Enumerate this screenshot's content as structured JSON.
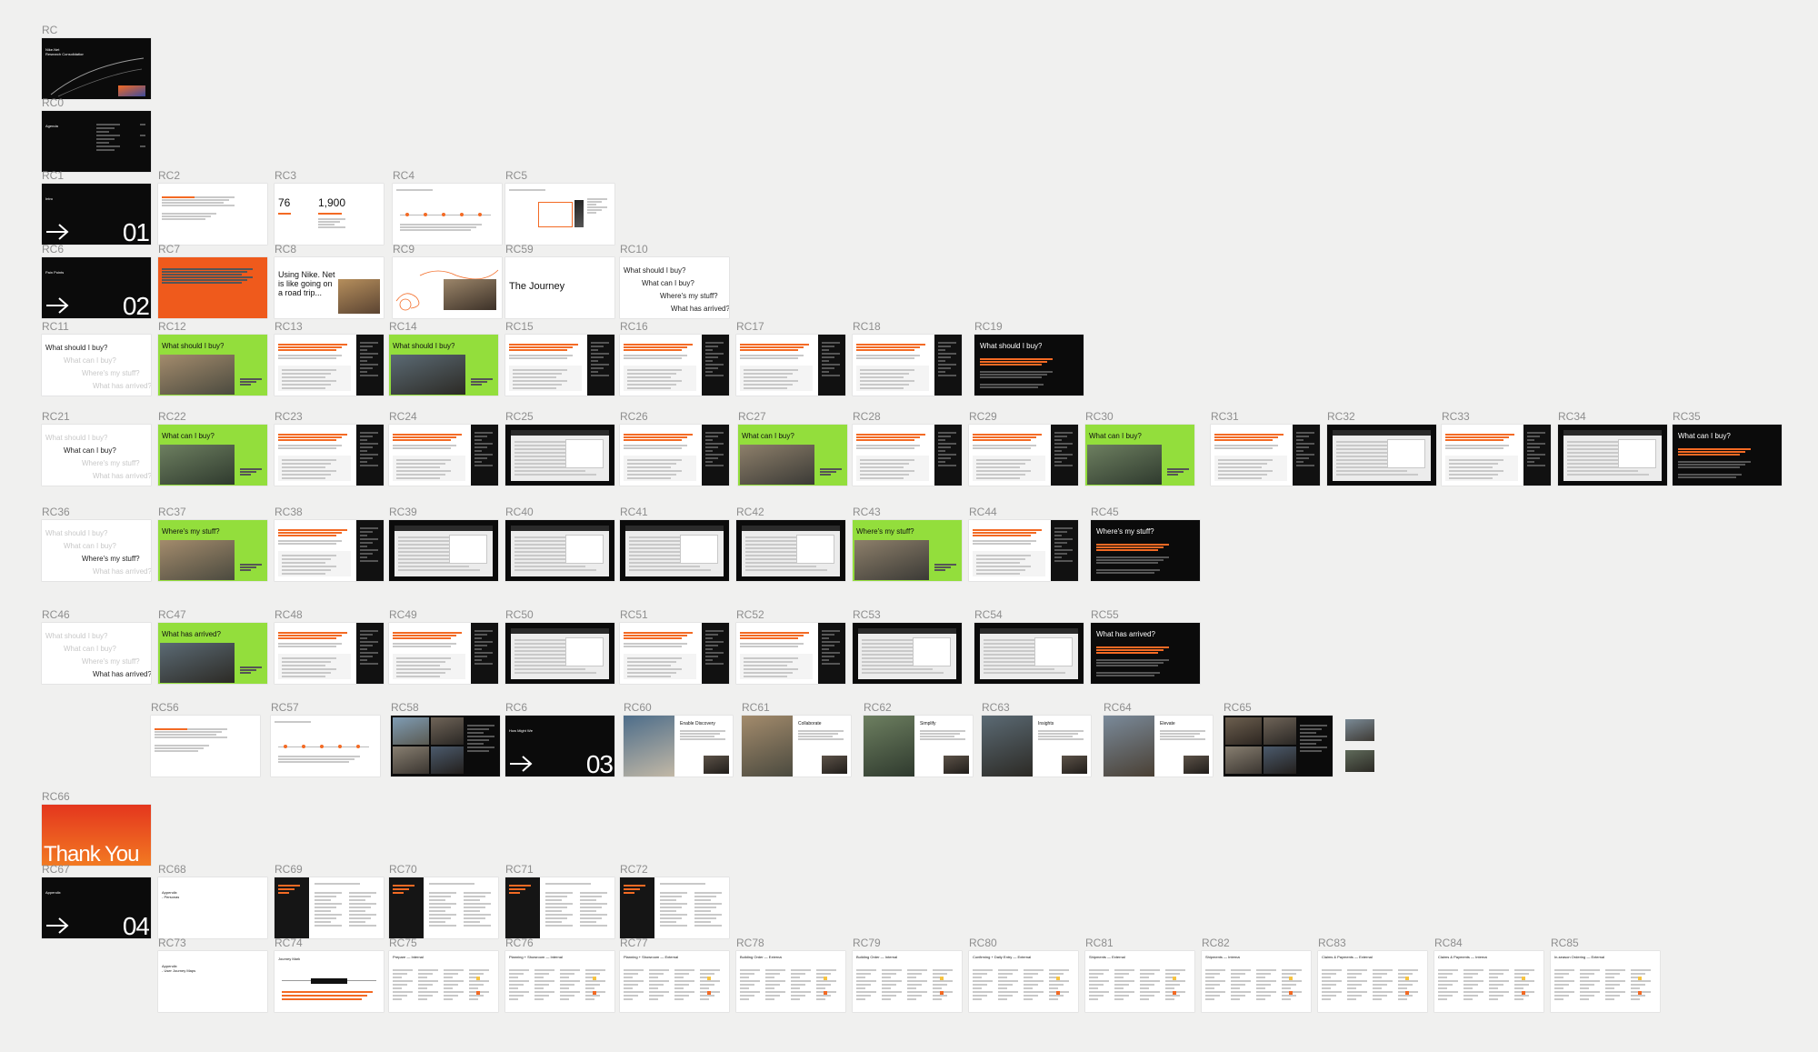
{
  "canvas": {
    "background": "#f0f0ef"
  },
  "colors": {
    "accent_orange": "#ef5a1c",
    "accent_lime": "#93de3c",
    "dark": "#0b0b0b",
    "label": "#8e8e8e"
  },
  "frames": [
    {
      "id": "RC",
      "label": "RC",
      "theme": "black",
      "kind": "cover",
      "title": "Nike.Net\nResearch Consolidation"
    },
    {
      "id": "RC0",
      "label": "RC0",
      "theme": "black",
      "kind": "agenda",
      "title": "Agenda"
    },
    {
      "id": "RC1",
      "label": "RC1",
      "theme": "black",
      "kind": "section",
      "title": "Intro",
      "number": "01"
    },
    {
      "id": "RC2",
      "label": "RC2",
      "theme": "white",
      "kind": "text"
    },
    {
      "id": "RC3",
      "label": "RC3",
      "theme": "white",
      "kind": "stats",
      "big1": "76",
      "big2": "1,900"
    },
    {
      "id": "RC4",
      "label": "RC4",
      "theme": "white",
      "kind": "diagram"
    },
    {
      "id": "RC5",
      "label": "RC5",
      "theme": "white",
      "kind": "diagram2"
    },
    {
      "id": "RC6a",
      "label": "RC6",
      "theme": "black",
      "kind": "section",
      "title": "Pain Points",
      "number": "02"
    },
    {
      "id": "RC7",
      "label": "RC7",
      "theme": "orange",
      "kind": "text-orange"
    },
    {
      "id": "RC8",
      "label": "RC8",
      "theme": "white",
      "kind": "roadtrip",
      "title": "Using Nike. Net\nis like going on\na road trip..."
    },
    {
      "id": "RC9",
      "label": "RC9",
      "theme": "white",
      "kind": "photo-sketch"
    },
    {
      "id": "RC59",
      "label": "RC59",
      "theme": "white",
      "kind": "title",
      "title": "The Journey"
    },
    {
      "id": "RC10",
      "label": "RC10",
      "theme": "white",
      "kind": "questions",
      "q": [
        "What should I buy?",
        "What can I buy?",
        "Where's my stuff?",
        "What has arrived?"
      ]
    },
    {
      "id": "RC11",
      "label": "RC11",
      "theme": "white",
      "kind": "questions",
      "q": [
        "What should I buy?",
        "What can I buy?",
        "Where's my stuff?",
        "What has arrived?"
      ]
    },
    {
      "id": "RC12",
      "label": "RC12",
      "theme": "lime",
      "kind": "lime-photo",
      "title": "What should I buy?"
    },
    {
      "id": "RC13",
      "label": "RC13",
      "theme": "white",
      "kind": "text-side"
    },
    {
      "id": "RC14",
      "label": "RC14",
      "theme": "lime",
      "kind": "lime-photo",
      "title": "What should I buy?"
    },
    {
      "id": "RC15",
      "label": "RC15",
      "theme": "white",
      "kind": "text-side"
    },
    {
      "id": "RC16",
      "label": "RC16",
      "theme": "white",
      "kind": "text-side"
    },
    {
      "id": "RC17",
      "label": "RC17",
      "theme": "white",
      "kind": "text-side"
    },
    {
      "id": "RC18",
      "label": "RC18",
      "theme": "white",
      "kind": "text-side"
    },
    {
      "id": "RC19",
      "label": "RC19",
      "theme": "black",
      "kind": "dark-text",
      "title": "What should I buy?"
    },
    {
      "id": "RC21",
      "label": "RC21",
      "theme": "white",
      "kind": "questions",
      "q": [
        "What should I buy?",
        "What can I buy?",
        "Where's my stuff?",
        "What has arrived?"
      ]
    },
    {
      "id": "RC22",
      "label": "RC22",
      "theme": "lime",
      "kind": "lime-photo",
      "title": "What can I buy?"
    },
    {
      "id": "RC23",
      "label": "RC23",
      "theme": "white",
      "kind": "text-side"
    },
    {
      "id": "RC24",
      "label": "RC24",
      "theme": "white",
      "kind": "text-side"
    },
    {
      "id": "RC25",
      "label": "RC25",
      "theme": "black",
      "kind": "screenshot"
    },
    {
      "id": "RC26",
      "label": "RC26",
      "theme": "white",
      "kind": "text-side"
    },
    {
      "id": "RC27",
      "label": "RC27",
      "theme": "lime",
      "kind": "lime-photo",
      "title": "What can I buy?"
    },
    {
      "id": "RC28",
      "label": "RC28",
      "theme": "white",
      "kind": "text-side"
    },
    {
      "id": "RC29",
      "label": "RC29",
      "theme": "white",
      "kind": "text-side"
    },
    {
      "id": "RC30",
      "label": "RC30",
      "theme": "lime",
      "kind": "lime-photo",
      "title": "What can I buy?"
    },
    {
      "id": "RC31",
      "label": "RC31",
      "theme": "white",
      "kind": "text-side"
    },
    {
      "id": "RC32",
      "label": "RC32",
      "theme": "black",
      "kind": "screenshot"
    },
    {
      "id": "RC33",
      "label": "RC33",
      "theme": "white",
      "kind": "text-side"
    },
    {
      "id": "RC34",
      "label": "RC34",
      "theme": "black",
      "kind": "screenshot"
    },
    {
      "id": "RC35",
      "label": "RC35",
      "theme": "black",
      "kind": "dark-text",
      "title": "What can I buy?"
    },
    {
      "id": "RC36",
      "label": "RC36",
      "theme": "white",
      "kind": "questions",
      "q": [
        "What should I buy?",
        "What can I buy?",
        "Where's my stuff?",
        "What has arrived?"
      ]
    },
    {
      "id": "RC37",
      "label": "RC37",
      "theme": "lime",
      "kind": "lime-photo",
      "title": "Where's my stuff?"
    },
    {
      "id": "RC38",
      "label": "RC38",
      "theme": "white",
      "kind": "text-side"
    },
    {
      "id": "RC39",
      "label": "RC39",
      "theme": "black",
      "kind": "screenshot"
    },
    {
      "id": "RC40",
      "label": "RC40",
      "theme": "black",
      "kind": "screenshot"
    },
    {
      "id": "RC41",
      "label": "RC41",
      "theme": "black",
      "kind": "screenshot"
    },
    {
      "id": "RC42",
      "label": "RC42",
      "theme": "black",
      "kind": "screenshot"
    },
    {
      "id": "RC43",
      "label": "RC43",
      "theme": "lime",
      "kind": "lime-photo",
      "title": "Where's my stuff?"
    },
    {
      "id": "RC44",
      "label": "RC44",
      "theme": "white",
      "kind": "text-side"
    },
    {
      "id": "RC45",
      "label": "RC45",
      "theme": "black",
      "kind": "dark-text",
      "title": "Where's my stuff?"
    },
    {
      "id": "RC46",
      "label": "RC46",
      "theme": "white",
      "kind": "questions",
      "q": [
        "What should I buy?",
        "What can I buy?",
        "Where's my stuff?",
        "What has arrived?"
      ]
    },
    {
      "id": "RC47",
      "label": "RC47",
      "theme": "lime",
      "kind": "lime-photo",
      "title": "What has arrived?"
    },
    {
      "id": "RC48",
      "label": "RC48",
      "theme": "white",
      "kind": "text-side"
    },
    {
      "id": "RC49",
      "label": "RC49",
      "theme": "white",
      "kind": "text-side"
    },
    {
      "id": "RC50",
      "label": "RC50",
      "theme": "black",
      "kind": "screenshot"
    },
    {
      "id": "RC51",
      "label": "RC51",
      "theme": "white",
      "kind": "text-side"
    },
    {
      "id": "RC52",
      "label": "RC52",
      "theme": "white",
      "kind": "text-side"
    },
    {
      "id": "RC53",
      "label": "RC53",
      "theme": "black",
      "kind": "screenshot"
    },
    {
      "id": "RC54",
      "label": "RC54",
      "theme": "black",
      "kind": "screenshot"
    },
    {
      "id": "RC55",
      "label": "RC55",
      "theme": "black",
      "kind": "dark-text",
      "title": "What has arrived?"
    },
    {
      "id": "RC56",
      "label": "RC56",
      "theme": "white",
      "kind": "text"
    },
    {
      "id": "RC57",
      "label": "RC57",
      "theme": "white",
      "kind": "diagram"
    },
    {
      "id": "RC58",
      "label": "RC58",
      "theme": "black",
      "kind": "photo-grid"
    },
    {
      "id": "RC6b",
      "label": "RC6",
      "theme": "black",
      "kind": "section",
      "title": "How Might We",
      "number": "03"
    },
    {
      "id": "RC60",
      "label": "RC60",
      "theme": "white",
      "kind": "hmw-photo",
      "title": "Enable Discovery"
    },
    {
      "id": "RC61",
      "label": "RC61",
      "theme": "white",
      "kind": "hmw-photo",
      "title": "Collaborate"
    },
    {
      "id": "RC62",
      "label": "RC62",
      "theme": "white",
      "kind": "hmw-photo",
      "title": "Simplify"
    },
    {
      "id": "RC63",
      "label": "RC63",
      "theme": "white",
      "kind": "hmw-photo",
      "title": "Insights"
    },
    {
      "id": "RC64",
      "label": "RC64",
      "theme": "white",
      "kind": "hmw-photo",
      "title": "Elevate"
    },
    {
      "id": "RC65",
      "label": "RC65",
      "theme": "black",
      "kind": "photo-grid"
    },
    {
      "id": "RC65b",
      "label": "",
      "theme": "white",
      "kind": "mini-photos"
    },
    {
      "id": "RC66",
      "label": "RC66",
      "theme": "orange",
      "kind": "thankyou",
      "title": "Thank You"
    },
    {
      "id": "RC67",
      "label": "RC67",
      "theme": "black",
      "kind": "section",
      "title": "Appendix",
      "number": "04"
    },
    {
      "id": "RC68",
      "label": "RC68",
      "theme": "white",
      "kind": "appendix",
      "title": "Appendix\n- Personas"
    },
    {
      "id": "RC69",
      "label": "RC69",
      "theme": "white",
      "kind": "persona"
    },
    {
      "id": "RC70",
      "label": "RC70",
      "theme": "white",
      "kind": "persona"
    },
    {
      "id": "RC71",
      "label": "RC71",
      "theme": "white",
      "kind": "persona"
    },
    {
      "id": "RC72",
      "label": "RC72",
      "theme": "white",
      "kind": "persona"
    },
    {
      "id": "RC73",
      "label": "RC73",
      "theme": "white",
      "kind": "appendix",
      "title": "Appendix\n- User Journey Maps"
    },
    {
      "id": "RC74",
      "label": "RC74",
      "theme": "white",
      "kind": "journey",
      "title": "Journey Mark"
    },
    {
      "id": "RC75",
      "label": "RC75",
      "theme": "white",
      "kind": "table",
      "title": "Prepare — Internal"
    },
    {
      "id": "RC76",
      "label": "RC76",
      "theme": "white",
      "kind": "table",
      "title": "Planning + Showroom — Internal"
    },
    {
      "id": "RC77",
      "label": "RC77",
      "theme": "white",
      "kind": "table",
      "title": "Planning + Showroom — External"
    },
    {
      "id": "RC78",
      "label": "RC78",
      "theme": "white",
      "kind": "table",
      "title": "Building Order — External"
    },
    {
      "id": "RC79",
      "label": "RC79",
      "theme": "white",
      "kind": "table",
      "title": "Building Order — Internal"
    },
    {
      "id": "RC80",
      "label": "RC80",
      "theme": "white",
      "kind": "table",
      "title": "Confirming + Daily Entry — External"
    },
    {
      "id": "RC81",
      "label": "RC81",
      "theme": "white",
      "kind": "table",
      "title": "Shipments — External"
    },
    {
      "id": "RC82",
      "label": "RC82",
      "theme": "white",
      "kind": "table",
      "title": "Shipments — Internal"
    },
    {
      "id": "RC83",
      "label": "RC83",
      "theme": "white",
      "kind": "table",
      "title": "Claims & Payments — External"
    },
    {
      "id": "RC84",
      "label": "RC84",
      "theme": "white",
      "kind": "table",
      "title": "Claims & Payments — Internal"
    },
    {
      "id": "RC85",
      "label": "RC85",
      "theme": "white",
      "kind": "table",
      "title": "In-season Ordering — External"
    }
  ]
}
